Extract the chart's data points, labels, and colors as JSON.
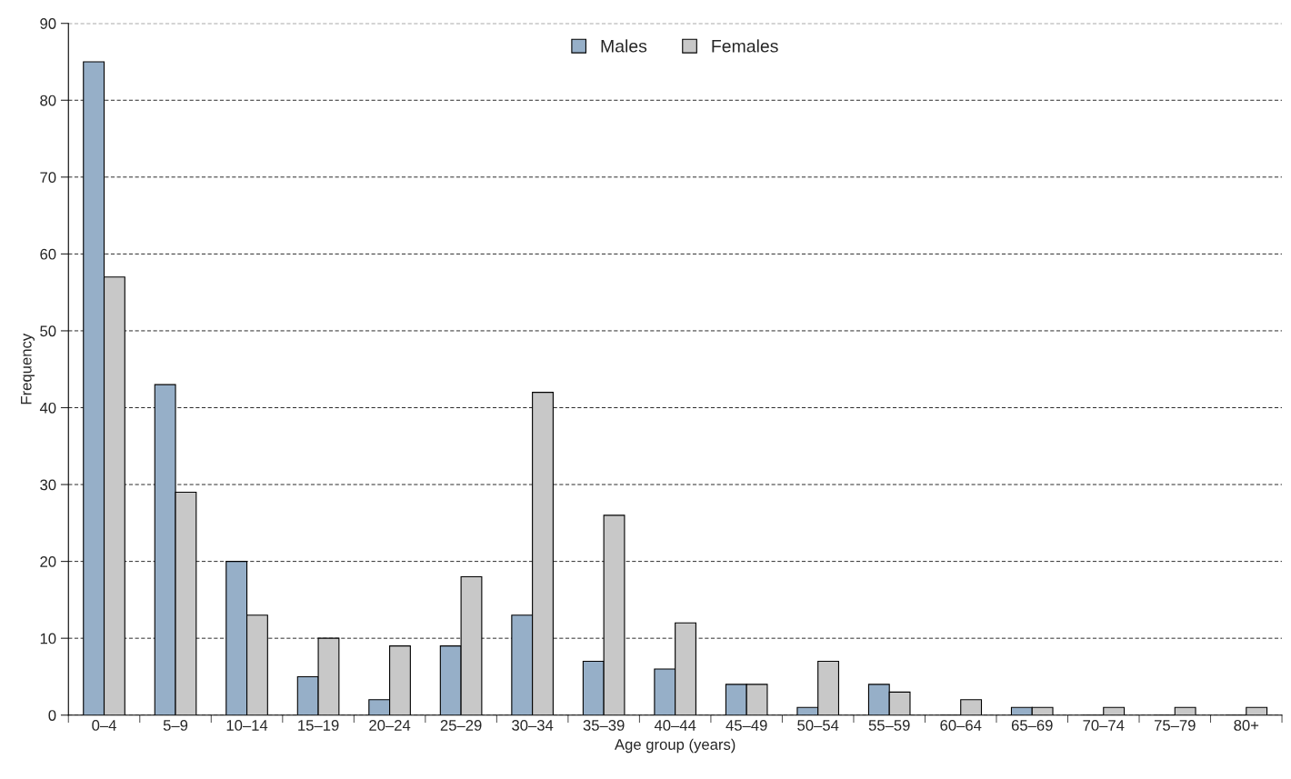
{
  "chart_data": {
    "type": "bar",
    "xlabel": "Age group (years)",
    "ylabel": "Frequency",
    "categories": [
      "0–4",
      "5–9",
      "10–14",
      "15–19",
      "20–24",
      "25–29",
      "30–34",
      "35–39",
      "40–44",
      "45–49",
      "50–54",
      "55–59",
      "60–64",
      "65–69",
      "70–74",
      "75–79",
      "80+"
    ],
    "series": [
      {
        "name": "Males",
        "color": "#96afc8",
        "values": [
          85,
          43,
          20,
          5,
          2,
          9,
          13,
          7,
          6,
          4,
          1,
          4,
          0,
          1,
          0,
          0,
          0
        ]
      },
      {
        "name": "Females",
        "color": "#c8c8c8",
        "values": [
          57,
          29,
          13,
          10,
          9,
          18,
          42,
          26,
          12,
          4,
          7,
          3,
          2,
          1,
          1,
          1,
          1
        ]
      }
    ],
    "ylim": [
      0,
      90
    ],
    "yticks": [
      0,
      10,
      20,
      30,
      40,
      50,
      60,
      70,
      80,
      90
    ],
    "grid": "y",
    "legend": "top"
  }
}
